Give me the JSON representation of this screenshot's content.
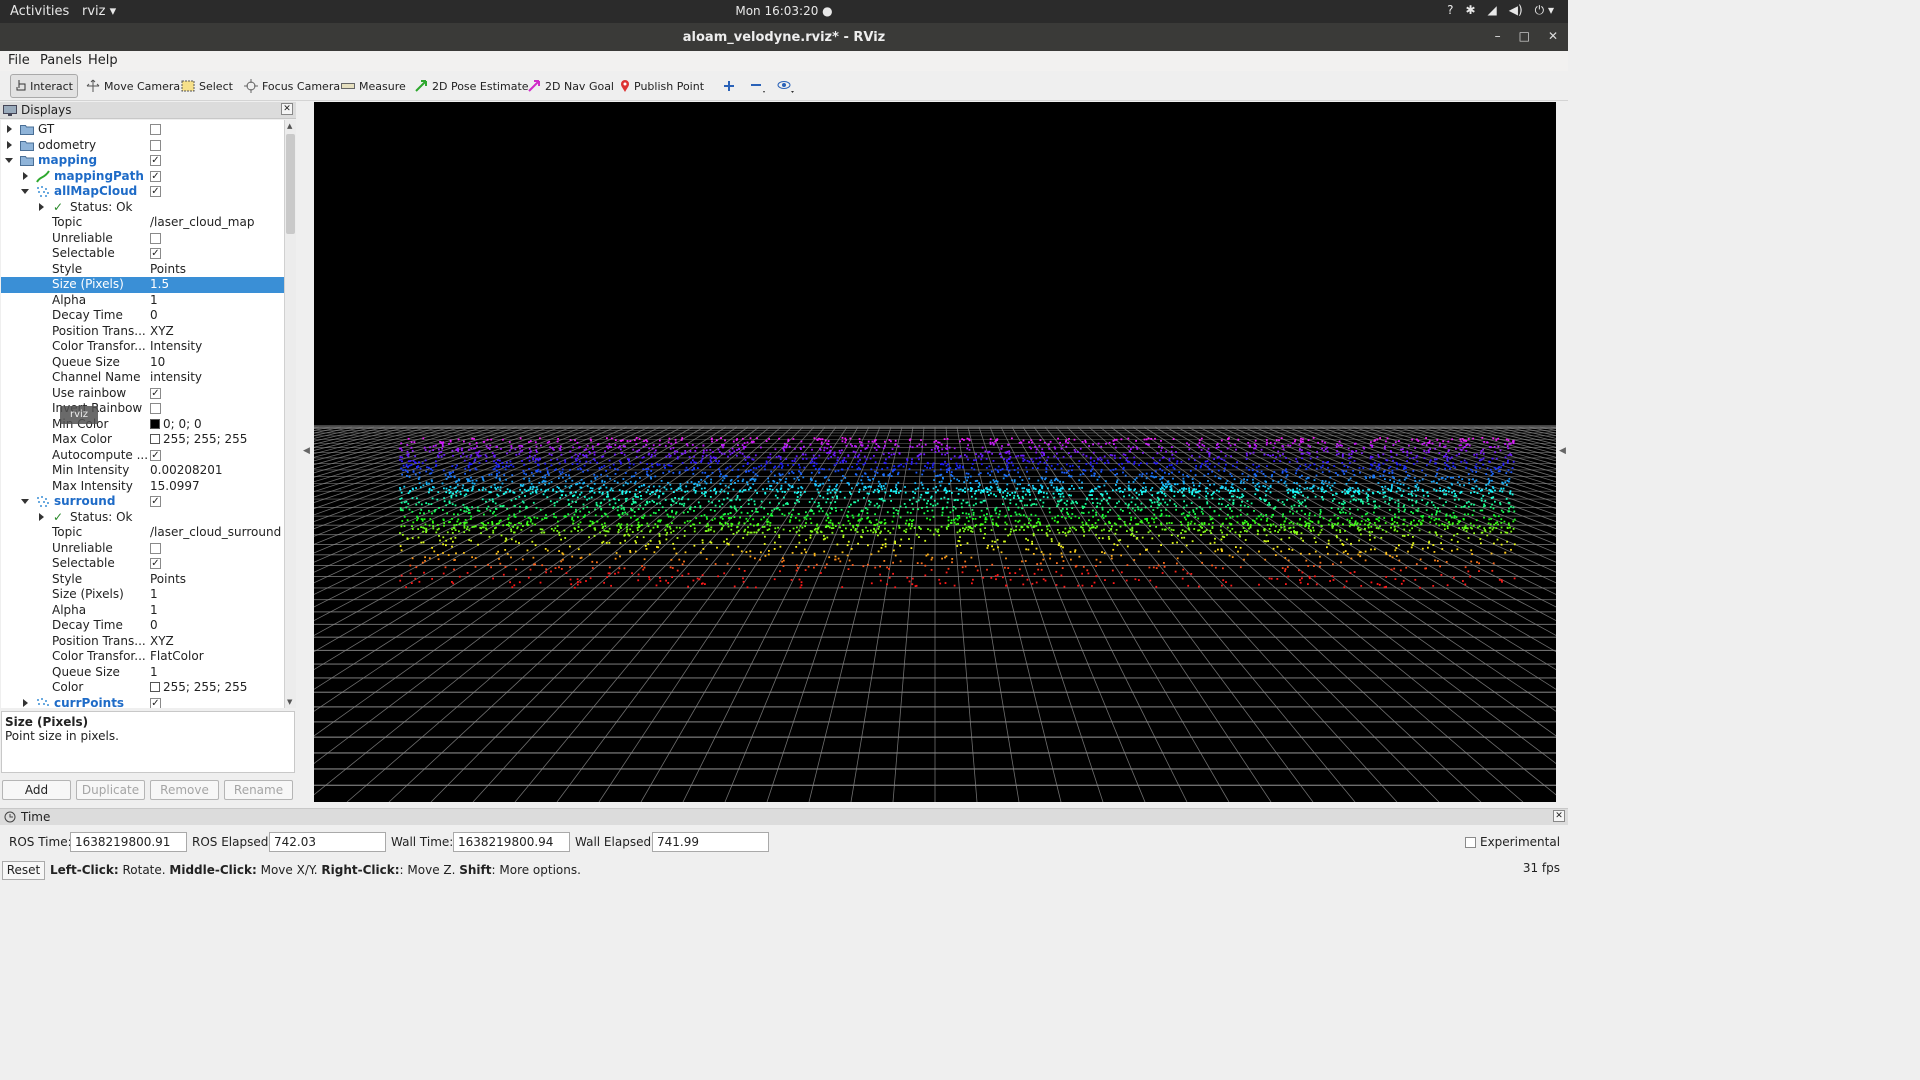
{
  "system": {
    "activities": "Activities",
    "app_menu": "rviz ▾",
    "clock": "Mon 16:03:20 ●",
    "tray": [
      "?",
      "✱",
      "◢",
      "◀)",
      "⏻ ▾"
    ]
  },
  "window": {
    "title": "aloam_velodyne.rviz* - RViz",
    "controls": [
      "–",
      "□",
      "✕"
    ]
  },
  "menu": [
    "File",
    "Panels",
    "Help"
  ],
  "toolbar": {
    "interact": "Interact",
    "move_camera": "Move Camera",
    "select": "Select",
    "focus_camera": "Focus Camera",
    "measure": "Measure",
    "pose_estimate": "2D Pose Estimate",
    "nav_goal": "2D Nav Goal",
    "publish_point": "Publish Point"
  },
  "displays": {
    "title": "Displays",
    "rows": [
      {
        "label": "GT",
        "value": ""
      },
      {
        "label": "odometry",
        "value": ""
      },
      {
        "label": "mapping",
        "value": ""
      },
      {
        "label": "mappingPath",
        "value": ""
      },
      {
        "label": "allMapCloud",
        "value": ""
      },
      {
        "label": "Status: Ok",
        "value": ""
      },
      {
        "label": "Topic",
        "value": "/laser_cloud_map"
      },
      {
        "label": "Unreliable",
        "value": ""
      },
      {
        "label": "Selectable",
        "value": ""
      },
      {
        "label": "Style",
        "value": "Points"
      },
      {
        "label": "Size (Pixels)",
        "value": "1.5"
      },
      {
        "label": "Alpha",
        "value": "1"
      },
      {
        "label": "Decay Time",
        "value": "0"
      },
      {
        "label": "Position Trans...",
        "value": "XYZ"
      },
      {
        "label": "Color Transfor...",
        "value": "Intensity"
      },
      {
        "label": "Queue Size",
        "value": "10"
      },
      {
        "label": "Channel Name",
        "value": "intensity"
      },
      {
        "label": "Use rainbow",
        "value": ""
      },
      {
        "label": "Invert Rainbow",
        "value": ""
      },
      {
        "label": "Min Color",
        "value": "0; 0; 0"
      },
      {
        "label": "Max Color",
        "value": "255; 255; 255"
      },
      {
        "label": "Autocompute ...",
        "value": ""
      },
      {
        "label": "Min Intensity",
        "value": "0.00208201"
      },
      {
        "label": "Max Intensity",
        "value": "15.0997"
      },
      {
        "label": "surround",
        "value": ""
      },
      {
        "label": "Status: Ok",
        "value": ""
      },
      {
        "label": "Topic",
        "value": "/laser_cloud_surround"
      },
      {
        "label": "Unreliable",
        "value": ""
      },
      {
        "label": "Selectable",
        "value": ""
      },
      {
        "label": "Style",
        "value": "Points"
      },
      {
        "label": "Size (Pixels)",
        "value": "1"
      },
      {
        "label": "Alpha",
        "value": "1"
      },
      {
        "label": "Decay Time",
        "value": "0"
      },
      {
        "label": "Position Trans...",
        "value": "XYZ"
      },
      {
        "label": "Color Transfor...",
        "value": "FlatColor"
      },
      {
        "label": "Queue Size",
        "value": "1"
      },
      {
        "label": "Color",
        "value": "255; 255; 255"
      },
      {
        "label": "currPoints",
        "value": ""
      }
    ],
    "tooltip": "rviz",
    "description_title": "Size (Pixels)",
    "description_text": "Point size in pixels.",
    "buttons": {
      "add": "Add",
      "duplicate": "Duplicate",
      "remove": "Remove",
      "rename": "Rename"
    }
  },
  "time": {
    "title": "Time",
    "ros_time_label": "ROS Time:",
    "ros_time": "1638219800.91",
    "ros_elapsed_label": "ROS Elapsed:",
    "ros_elapsed": "742.03",
    "wall_time_label": "Wall Time:",
    "wall_time": "1638219800.94",
    "wall_elapsed_label": "Wall Elapsed:",
    "wall_elapsed": "741.99",
    "experimental": "Experimental"
  },
  "status": {
    "reset": "Reset",
    "h1b": "Left-Click:",
    "h1": " Rotate. ",
    "h2b": "Middle-Click:",
    "h2": " Move X/Y. ",
    "h3b": "Right-Click:",
    "h3": ": Move Z. ",
    "h4b": "Shift",
    "h4": ": More options.",
    "fps": "31 fps"
  },
  "colors": {
    "selection": "#3a8fd6",
    "group_text": "#1e6bc7"
  }
}
